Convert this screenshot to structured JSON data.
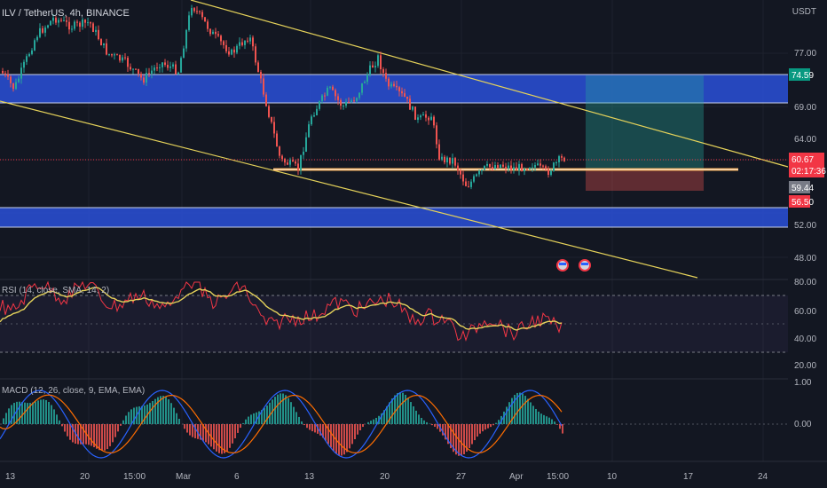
{
  "header": {
    "symbol": "ILV / TetherUS, 4h, BINANCE",
    "currency": "USDT"
  },
  "price_axis": {
    "ticks": [
      "77.00",
      "69.00",
      "64.00",
      "52.00",
      "48.00"
    ],
    "tags": {
      "upper": "74.59",
      "current": "60.67",
      "countdown": "02:17:36",
      "line": "59.44",
      "stop": "56.50"
    },
    "colors": {
      "upper": "#089981",
      "current": "#f23645",
      "line": "#787b86",
      "stop": "#f23645"
    }
  },
  "rsi": {
    "label": "RSI (14, close, SMA, 14, 2)",
    "ticks": [
      "80.00",
      "60.00",
      "40.00",
      "20.00"
    ]
  },
  "macd": {
    "label": "MACD (12, 26, close, 9, EMA, EMA)",
    "ticks": [
      "1.00",
      "0.00"
    ]
  },
  "time_axis": [
    "13",
    "20",
    "15:00",
    "Mar",
    "6",
    "13",
    "20",
    "27",
    "Apr",
    "15:00",
    "10",
    "17",
    "24"
  ],
  "colors": {
    "background": "#131722",
    "zone": "#2a50d8",
    "trendline": "#e5d25a",
    "support": "#f0a040",
    "up": "#26a69a",
    "down": "#ef5350",
    "rsi_line": "#f23645",
    "rsi_ma": "#e5d25a",
    "macd_line": "#2962ff",
    "signal_line": "#ff6d00"
  }
}
